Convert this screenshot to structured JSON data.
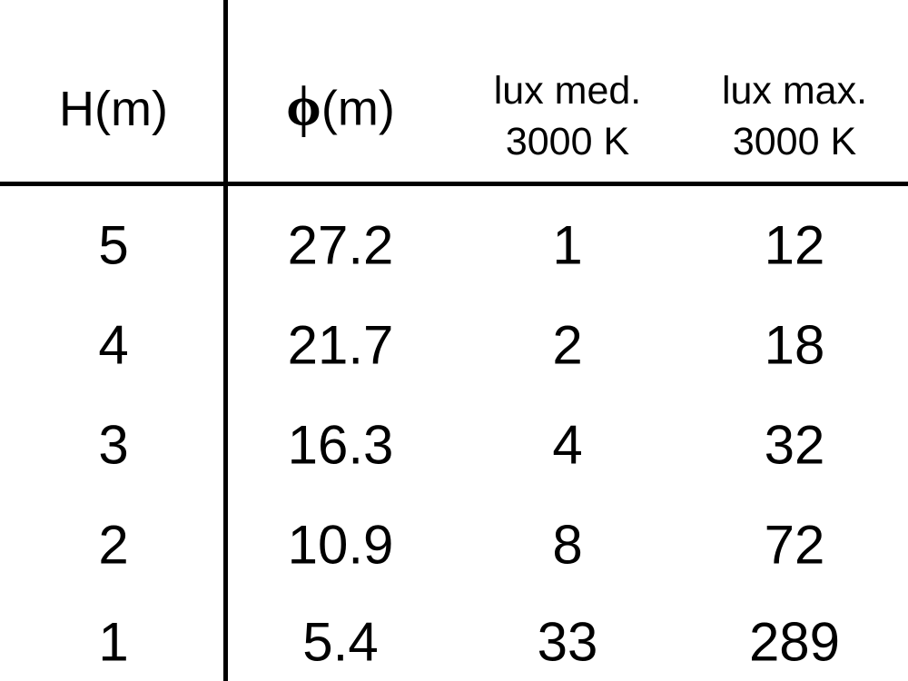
{
  "chart_data": {
    "type": "table",
    "columns": [
      {
        "symbol": "",
        "label": "H(m)"
      },
      {
        "symbol": "ϕ",
        "label": "(m)"
      },
      {
        "line1": "lux med.",
        "line2": "3000 K"
      },
      {
        "line1": "lux max.",
        "line2": "3000 K"
      }
    ],
    "rows": [
      [
        "5",
        "27.2",
        "1",
        "12"
      ],
      [
        "4",
        "21.7",
        "2",
        "18"
      ],
      [
        "3",
        "16.3",
        "4",
        "32"
      ],
      [
        "2",
        "10.9",
        "8",
        "72"
      ],
      [
        "1",
        "5.4",
        "33",
        "289"
      ]
    ]
  }
}
